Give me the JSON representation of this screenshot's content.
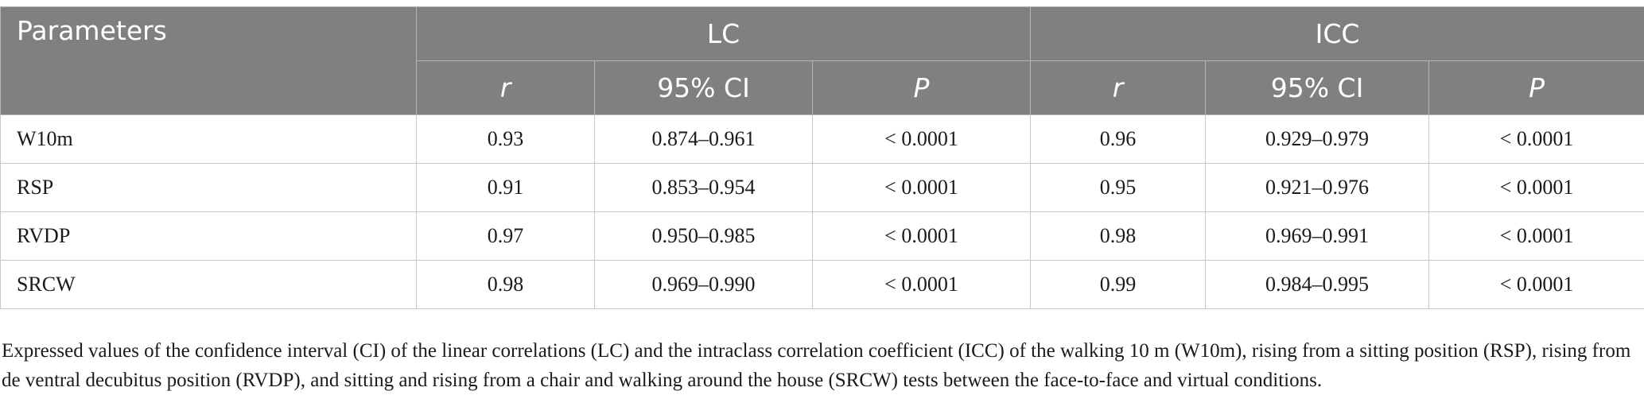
{
  "table": {
    "header": {
      "parameters": "Parameters",
      "lc": "LC",
      "icc": "ICC",
      "r": "r",
      "ci": "95% CI",
      "p": "P"
    },
    "rows": [
      {
        "name": "W10m",
        "lc_r": "0.93",
        "lc_ci": "0.874–0.961",
        "lc_p": "< 0.0001",
        "icc_r": "0.96",
        "icc_ci": "0.929–0.979",
        "icc_p": "< 0.0001"
      },
      {
        "name": "RSP",
        "lc_r": "0.91",
        "lc_ci": "0.853–0.954",
        "lc_p": "< 0.0001",
        "icc_r": "0.95",
        "icc_ci": "0.921–0.976",
        "icc_p": "< 0.0001"
      },
      {
        "name": "RVDP",
        "lc_r": "0.97",
        "lc_ci": "0.950–0.985",
        "lc_p": "< 0.0001",
        "icc_r": "0.98",
        "icc_ci": "0.969–0.991",
        "icc_p": "< 0.0001"
      },
      {
        "name": "SRCW",
        "lc_r": "0.98",
        "lc_ci": "0.969–0.990",
        "lc_p": "< 0.0001",
        "icc_r": "0.99",
        "icc_ci": "0.984–0.995",
        "icc_p": "< 0.0001"
      }
    ]
  },
  "caption": "Expressed values of the confidence interval (CI) of the linear correlations (LC) and the intraclass correlation coefficient (ICC) of the walking 10 m (W10m), rising from a sitting position (RSP), rising from de ventral decubitus position (RVDP), and sitting and rising from a chair and walking around the house (SRCW) tests between the face-to-face and virtual conditions."
}
